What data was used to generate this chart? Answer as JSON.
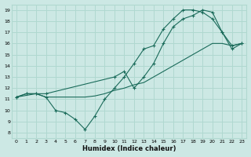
{
  "xlabel": "Humidex (Indice chaleur)",
  "background_color": "#cce8e4",
  "grid_color": "#b0d8d0",
  "line_color": "#1a6b5a",
  "xlim": [
    -0.5,
    23.5
  ],
  "ylim": [
    7.5,
    19.5
  ],
  "xticks": [
    0,
    1,
    2,
    3,
    4,
    5,
    6,
    7,
    8,
    9,
    10,
    11,
    12,
    13,
    14,
    15,
    16,
    17,
    18,
    19,
    20,
    21,
    22,
    23
  ],
  "yticks": [
    8,
    9,
    10,
    11,
    12,
    13,
    14,
    15,
    16,
    17,
    18,
    19
  ],
  "line1_x": [
    0,
    1,
    2,
    3,
    4,
    5,
    6,
    7,
    8,
    9,
    10,
    11,
    12,
    13,
    14,
    15,
    16,
    17,
    18,
    19,
    20,
    21,
    22,
    23
  ],
  "line1_y": [
    11.2,
    11.5,
    11.5,
    11.2,
    10.0,
    9.8,
    9.2,
    8.3,
    9.5,
    11.0,
    12.0,
    13.0,
    14.2,
    15.5,
    15.8,
    17.3,
    18.2,
    19.0,
    19.0,
    18.8,
    18.2,
    17.0,
    15.8,
    16.0
  ],
  "line2_x": [
    0,
    2,
    3,
    4,
    5,
    6,
    7,
    8,
    9,
    10,
    11,
    12,
    13,
    14,
    15,
    16,
    17,
    18,
    19,
    20,
    21,
    22,
    23
  ],
  "line2_y": [
    11.2,
    11.5,
    11.2,
    11.2,
    11.2,
    11.2,
    11.2,
    11.3,
    11.5,
    11.8,
    12.0,
    12.3,
    12.5,
    13.0,
    13.5,
    14.0,
    14.5,
    15.0,
    15.5,
    16.0,
    16.0,
    15.8,
    16.0
  ],
  "line3_x": [
    0,
    1,
    2,
    3,
    10,
    11,
    12,
    13,
    14,
    15,
    16,
    17,
    18,
    19,
    20,
    21,
    22,
    23
  ],
  "line3_y": [
    11.2,
    11.5,
    11.5,
    11.5,
    13.0,
    13.5,
    12.0,
    13.0,
    14.2,
    16.0,
    17.5,
    18.2,
    18.5,
    19.0,
    18.8,
    17.0,
    15.5,
    16.0
  ],
  "marker_x": [
    0,
    1,
    2,
    3,
    10,
    11,
    12,
    13,
    14,
    15,
    16,
    17,
    18,
    19,
    20,
    21,
    22,
    23
  ],
  "marker_y": [
    11.2,
    11.5,
    11.5,
    11.5,
    13.0,
    13.5,
    12.0,
    13.0,
    14.2,
    16.0,
    17.5,
    18.2,
    18.5,
    19.0,
    18.8,
    17.0,
    15.5,
    16.0
  ]
}
